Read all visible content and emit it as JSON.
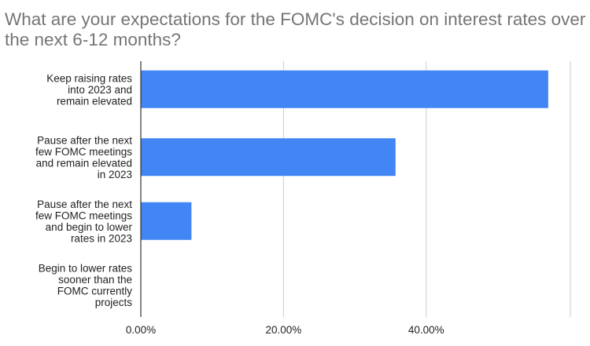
{
  "chart_data": {
    "type": "bar",
    "orientation": "horizontal",
    "title": "What are your expectations for the FOMC's decision on interest rates over the next 6-12 months?",
    "categories": [
      [
        "Keep raising rates",
        "into 2023 and",
        "remain elevated"
      ],
      [
        "Pause after the next",
        "few FOMC meetings",
        "and remain elevated",
        "in 2023"
      ],
      [
        "Pause after the next",
        "few FOMC meetings",
        "and begin to lower",
        "rates in 2023"
      ],
      [
        "Begin to lower rates",
        "sooner than the",
        "FOMC currently",
        "projects"
      ]
    ],
    "values": [
      57.1,
      35.7,
      7.1,
      0
    ],
    "x_ticks": [
      0,
      20,
      40
    ],
    "x_tick_labels": [
      "0.00%",
      "20.00%",
      "40.00%"
    ],
    "xlim": [
      0,
      60
    ],
    "xlabel": "",
    "ylabel": "",
    "grid": true,
    "bar_color": "#4285F4",
    "grid_color": "#CCCCCC",
    "axis_color": "#333333"
  }
}
